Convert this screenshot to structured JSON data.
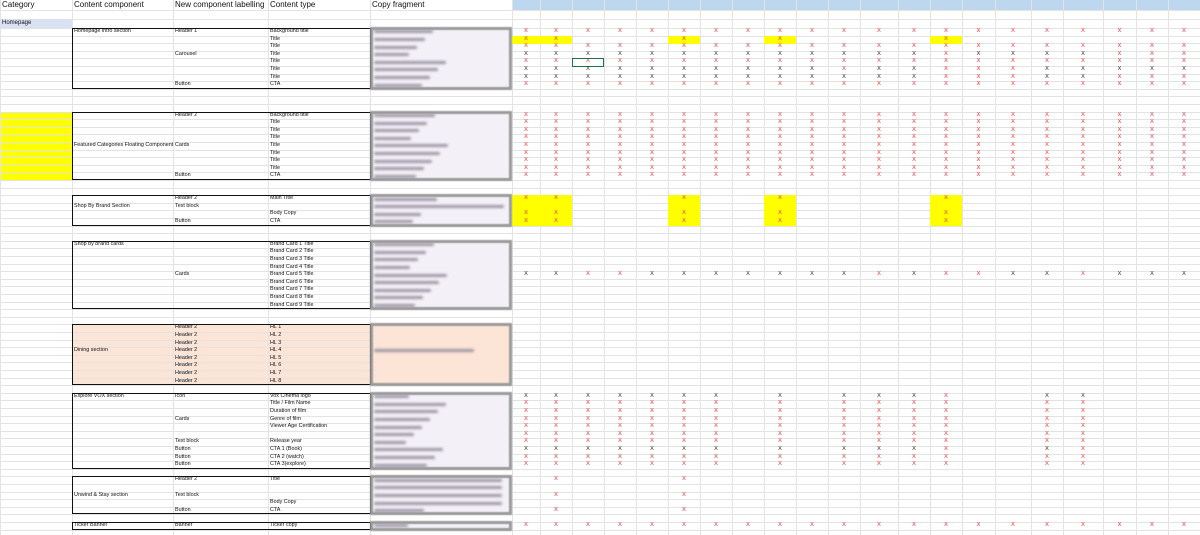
{
  "sheet": {
    "headers": [
      "Category",
      "Content component",
      "New component labelling",
      "Content type",
      "Copy fragment"
    ],
    "colors": {
      "header_bar": "#bdd7ee",
      "category_highlight": "#d9e1f2",
      "yellow": "#ffff00",
      "dining_fill": "#fce4d6",
      "copy_fill": "#f4f0f8",
      "mark_red": "#ff2020",
      "mark_black": "#222222",
      "selected_green": "#217346",
      "copy_highlight_green": "#e2efda"
    },
    "rows": [
      {
        "r": 1,
        "cat": "Homepage"
      },
      {
        "r": 2,
        "comp": "Homepage intro section",
        "label": "Header 1",
        "type": "Background title",
        "marks": "rrrrrrrrrrrrrrrrrrrrr"
      },
      {
        "r": 3,
        "type": "Title",
        "marks": "rr...r..r....r.......",
        "yellow": [
          0,
          1,
          5,
          8,
          13
        ]
      },
      {
        "r": 4,
        "type": "Title",
        "marks": "rrrrrrrrrrrrrrrrrrrrr"
      },
      {
        "r": 5,
        "label": "Carousel",
        "type": "Title",
        "marks": "bbbbbbbbbbbbbrbbbbrrr"
      },
      {
        "r": 6,
        "type": "Title",
        "marks": "rrrrrrrrrrrrrrrrrrrrr",
        "selected": 2
      },
      {
        "r": 7,
        "type": "Title",
        "marks": "bbbbbbbbbbrbbrrrbbbbb"
      },
      {
        "r": 8,
        "type": "Title",
        "marks": "bbbbbbbbbbbbbrrrbbrrr"
      },
      {
        "r": 9,
        "label": "Button",
        "type": "CTA",
        "marks": "rrrrrrrrrrrrrrrrrrrrr"
      },
      {
        "r": 13,
        "label": "Header 2",
        "type": "Background title",
        "marks": "rrrrrrrrrrrrrrrrrrrrr"
      },
      {
        "r": 14,
        "type": "Title",
        "marks": "rrrrrrrrrrrrrrrrrrrrr"
      },
      {
        "r": 15,
        "type": "Title",
        "marks": "rrrrrrrrrrrrrrrrrrrrr"
      },
      {
        "r": 16,
        "type": "Title",
        "marks": "rrrrrrrrrrrrrrrrrrrrr"
      },
      {
        "r": 17,
        "comp": "Featured Categories Floating Component",
        "label": "Cards",
        "type": "Title",
        "marks": "rrrrrrrrrrrrrrrrrrrrr"
      },
      {
        "r": 18,
        "type": "Title",
        "marks": "rrrrrrrrrrrrrrrrrrrrr"
      },
      {
        "r": 19,
        "type": "Title",
        "marks": "rrrrrrrrrrrrrrrrrrrrr"
      },
      {
        "r": 20,
        "type": "Title",
        "marks": "rrrrrrrrrrrrrrrrrrrrr"
      },
      {
        "r": 21,
        "label": "Button",
        "type": "CTA",
        "marks": "rrrrrrrrrrrrrrrrrrrrr"
      },
      {
        "r": 24,
        "label": "Header 2",
        "type": "Main Title",
        "marks": "rr...r..r....r.......",
        "yellow": [
          0,
          1,
          5,
          8,
          13
        ]
      },
      {
        "r": 25,
        "comp": "Shop By Brand Section",
        "label": "Text block",
        "yellow": [
          0,
          1,
          5,
          8,
          13
        ]
      },
      {
        "r": 26,
        "type": "Body Copy",
        "marks": "rr...r..r....r.......",
        "yellow": [
          0,
          1,
          5,
          8,
          13
        ]
      },
      {
        "r": 27,
        "label": "Button",
        "type": "CTA",
        "marks": "rr...r..r....r.......",
        "yellow": [
          0,
          1,
          5,
          8,
          13
        ]
      },
      {
        "r": 30,
        "comp": "Shop by brand cards",
        "type": "Brand Card 1 Title"
      },
      {
        "r": 31,
        "type": "Brand Card 2 Title"
      },
      {
        "r": 32,
        "type": "Brand Card 3 Title"
      },
      {
        "r": 33,
        "type": "Brand Card 4 Title"
      },
      {
        "r": 34,
        "label": "Cards",
        "type": "Brand Card 5 Title",
        "marks": "bbrrbbbbbbbrbrrbbrbbb"
      },
      {
        "r": 35,
        "type": "Brand Card 6 Title"
      },
      {
        "r": 36,
        "type": "Brand Card 7 Title"
      },
      {
        "r": 37,
        "type": "Brand Card 8 Title"
      },
      {
        "r": 38,
        "type": "Brand Card 9 Title"
      },
      {
        "r": 41,
        "label": "Header 2",
        "type": "HL 1"
      },
      {
        "r": 42,
        "label": "Header 2",
        "type": "HL 2"
      },
      {
        "r": 43,
        "label": "Header 2",
        "type": "HL 3"
      },
      {
        "r": 44,
        "comp": "Dining section",
        "label": "Header 2",
        "type": "HL 4"
      },
      {
        "r": 45,
        "label": "Header 2",
        "type": "HL 5"
      },
      {
        "r": 46,
        "label": "Header 2",
        "type": "HL 6"
      },
      {
        "r": 47,
        "label": "Header 2",
        "type": "HL 7"
      },
      {
        "r": 48,
        "label": "Header 2",
        "type": "HL 8"
      },
      {
        "r": 50,
        "comp": "Explore VOX section",
        "label": "Icon",
        "type": "Vox Cinema logo",
        "marks": "bbbbbbb.b.bbbr..bb..."
      },
      {
        "r": 51,
        "type": "Title / Film Name",
        "marks": "rrrrrrr.r.rrrr..rr..."
      },
      {
        "r": 52,
        "type": "Duration of film",
        "marks": "rrrrrrr.r.rrrr..rr..."
      },
      {
        "r": 53,
        "label": "Cards",
        "type": "Genre of film",
        "marks": "rrrrrrr.r.rrrr..rr..."
      },
      {
        "r": 54,
        "type": "Viewer Age Certification",
        "marks": "rrrrrrr.r.rrrr..rr..."
      },
      {
        "r": 55,
        "marks": "rrrrrrr.r.rrrr..rr..."
      },
      {
        "r": 56,
        "label": "Text block",
        "type": "Release year",
        "marks": "rrrrrrr.r.rrrr..rr..."
      },
      {
        "r": 57,
        "label": "Button",
        "type": "CTA 1 (Book)",
        "marks": "bbbbbbb.b.bbbr..br..."
      },
      {
        "r": 58,
        "label": "Button",
        "type": "CTA 2 (watch)",
        "marks": "rrrrrrr.r.rrrr..rr..."
      },
      {
        "r": 59,
        "label": "Button",
        "type": "CTA 3(explore)",
        "marks": "rrrrrrr.r.rrrr..rr..."
      },
      {
        "r": 61,
        "label": "Header 2",
        "type": "Title",
        "marks": ".r...r..............."
      },
      {
        "r": 63,
        "comp": "Unwind & Stay section",
        "label": "Text block",
        "marks": ".r...r..............."
      },
      {
        "r": 64,
        "type": "Body Copy"
      },
      {
        "r": 65,
        "label": "Button",
        "type": "CTA",
        "marks": ".r...r..............."
      },
      {
        "r": 67,
        "comp": "Ticker Banner",
        "label": "Banner",
        "type": "Ticker copy",
        "marks": "rrrrrrrrrrrrrrrrrrrrr"
      }
    ],
    "mark_glyph": "X",
    "blocks": [
      {
        "from": 2,
        "to": 9
      },
      {
        "from": 13,
        "to": 21
      },
      {
        "from": 24,
        "to": 27
      },
      {
        "from": 30,
        "to": 38
      },
      {
        "from": 41,
        "to": 48,
        "dining": true
      },
      {
        "from": 50,
        "to": 59
      },
      {
        "from": 61,
        "to": 65
      },
      {
        "from": 67,
        "to": 67
      }
    ],
    "category_yellow": {
      "from": 13,
      "to": 21
    }
  }
}
